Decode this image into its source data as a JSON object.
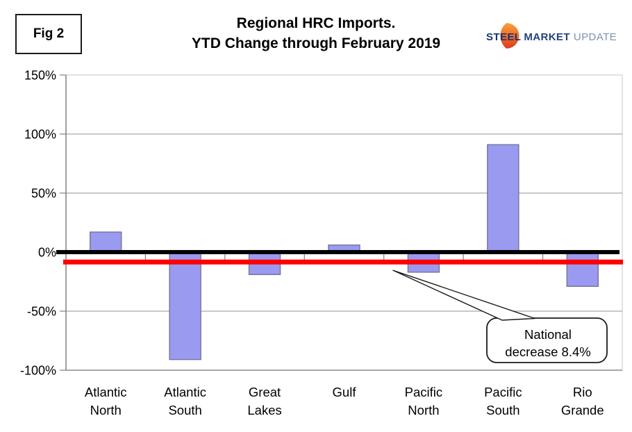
{
  "header": {
    "fig_label": "Fig 2",
    "title_line1": "Regional HRC Imports.",
    "title_line2": "YTD Change through February 2019",
    "logo": {
      "word1": "STEEL",
      "word2": "MARKET",
      "word3": "UPDATE",
      "crescent_color_top": "#F9A13B",
      "crescent_color_bottom": "#E03A1E"
    }
  },
  "chart_data": {
    "type": "bar",
    "title": "Regional HRC Imports. YTD Change through February 2019",
    "categories": [
      "Atlantic North",
      "Atlantic South",
      "Great Lakes",
      "Gulf",
      "Pacific North",
      "Pacific South",
      "Rio Grande"
    ],
    "values": [
      17,
      -91,
      -19,
      6,
      -17,
      91,
      -29
    ],
    "unit": "%",
    "xlabel": "",
    "ylabel": "",
    "ylim": [
      -100,
      150
    ],
    "yticks": [
      150,
      100,
      50,
      0,
      -50,
      -100
    ],
    "ytick_labels": [
      "150%",
      "100%",
      "50%",
      "0%",
      "-50%",
      "-100%"
    ],
    "grid": true,
    "legend": "none",
    "style": {
      "bar_fill": "#9A9AF0",
      "bar_stroke": "#73739E",
      "gridline_color": "#A6A6A6",
      "plot_border_color": "#D9D9D9",
      "axis_color": "#808080",
      "zero_line_color": "#000000",
      "national_line_color": "#FF0000"
    },
    "reference_lines": [
      {
        "name": "zero-baseline",
        "value": 0,
        "color": "#000000"
      },
      {
        "name": "national-decrease-line",
        "value": -8.4,
        "color": "#FF0000"
      }
    ],
    "annotation": {
      "line1": "National",
      "line2": "decrease 8.4%",
      "points_to_value": -8.4
    }
  }
}
